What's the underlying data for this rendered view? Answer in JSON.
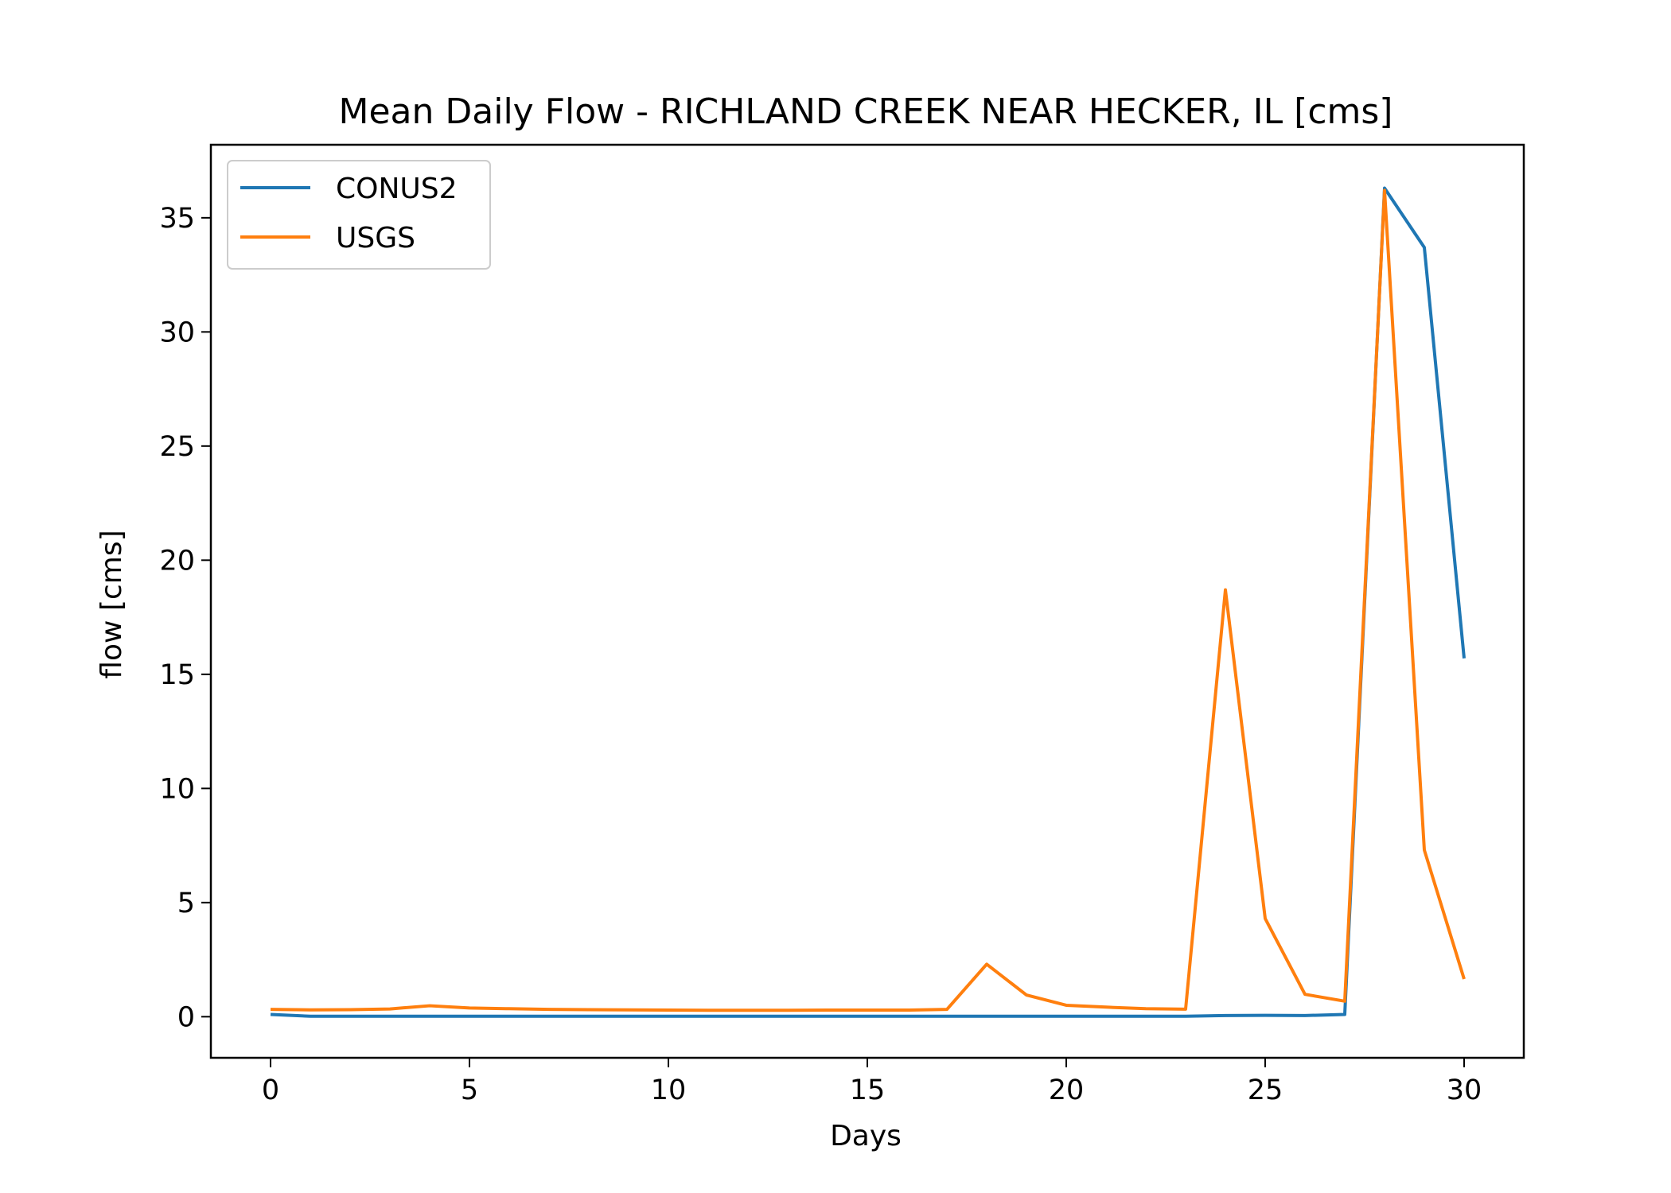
{
  "chart_data": {
    "type": "line",
    "title": "Mean Daily Flow - RICHLAND CREEK NEAR HECKER, IL [cms]",
    "xlabel": "Days",
    "ylabel": "flow [cms]",
    "xlim": [
      -1.5,
      31.5
    ],
    "ylim": [
      -1.8,
      38.2
    ],
    "xticks": [
      0,
      5,
      10,
      15,
      20,
      25,
      30
    ],
    "yticks": [
      0,
      5,
      10,
      15,
      20,
      25,
      30,
      35
    ],
    "grid": false,
    "legend_position": "top-left",
    "x": [
      0,
      1,
      2,
      3,
      4,
      5,
      6,
      7,
      8,
      9,
      10,
      11,
      12,
      13,
      14,
      15,
      16,
      17,
      18,
      19,
      20,
      21,
      22,
      23,
      24,
      25,
      26,
      27,
      28,
      29,
      30
    ],
    "series": [
      {
        "name": "CONUS2",
        "color": "#1f77b4",
        "values": [
          0.1,
          0.02,
          0.02,
          0.02,
          0.02,
          0.02,
          0.02,
          0.02,
          0.02,
          0.02,
          0.02,
          0.02,
          0.02,
          0.02,
          0.02,
          0.02,
          0.02,
          0.02,
          0.02,
          0.02,
          0.02,
          0.02,
          0.02,
          0.02,
          0.05,
          0.06,
          0.05,
          0.1,
          36.3,
          33.7,
          15.7
        ]
      },
      {
        "name": "USGS",
        "color": "#ff7f0e",
        "values": [
          0.32,
          0.3,
          0.31,
          0.34,
          0.48,
          0.38,
          0.35,
          0.32,
          0.31,
          0.3,
          0.29,
          0.28,
          0.28,
          0.28,
          0.29,
          0.29,
          0.29,
          0.32,
          2.3,
          0.95,
          0.5,
          0.42,
          0.35,
          0.33,
          18.7,
          4.3,
          0.98,
          0.68,
          36.2,
          7.3,
          1.65
        ]
      }
    ]
  }
}
